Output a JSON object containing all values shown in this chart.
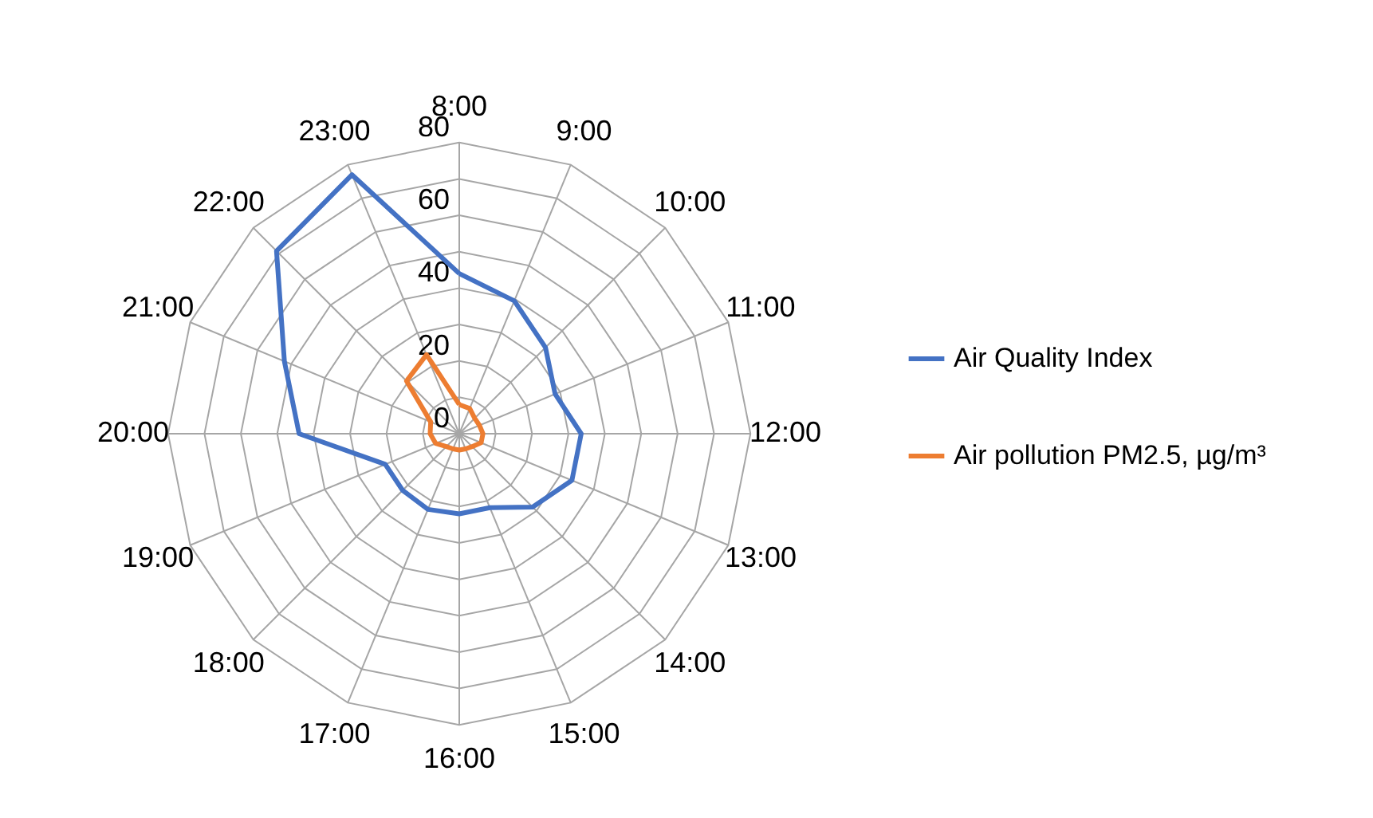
{
  "chart_data": {
    "type": "radar",
    "categories": [
      "8:00",
      "9:00",
      "10:00",
      "11:00",
      "12:00",
      "13:00",
      "14:00",
      "15:00",
      "16:00",
      "17:00",
      "18:00",
      "19:00",
      "20:00",
      "21:00",
      "22:00",
      "23:00"
    ],
    "series": [
      {
        "name": "Air Quality Index",
        "color": "#4472c4",
        "values": [
          44,
          39.5,
          33.5,
          28.5,
          33.5,
          33.5,
          28.5,
          22,
          22,
          22.5,
          22,
          22,
          44,
          52,
          71,
          77
        ]
      },
      {
        "name": "Air pollution PM2.5, µg/m³",
        "color": "#ed7d31",
        "values": [
          8,
          7.5,
          6,
          6,
          6.5,
          6.5,
          5,
          4.5,
          4.5,
          4.5,
          5,
          7,
          8,
          8.5,
          20.5,
          23.5
        ]
      }
    ],
    "ylim": [
      0,
      80
    ],
    "yticks": [
      0,
      20,
      40,
      60,
      80
    ],
    "grid": true,
    "legend": "right"
  }
}
